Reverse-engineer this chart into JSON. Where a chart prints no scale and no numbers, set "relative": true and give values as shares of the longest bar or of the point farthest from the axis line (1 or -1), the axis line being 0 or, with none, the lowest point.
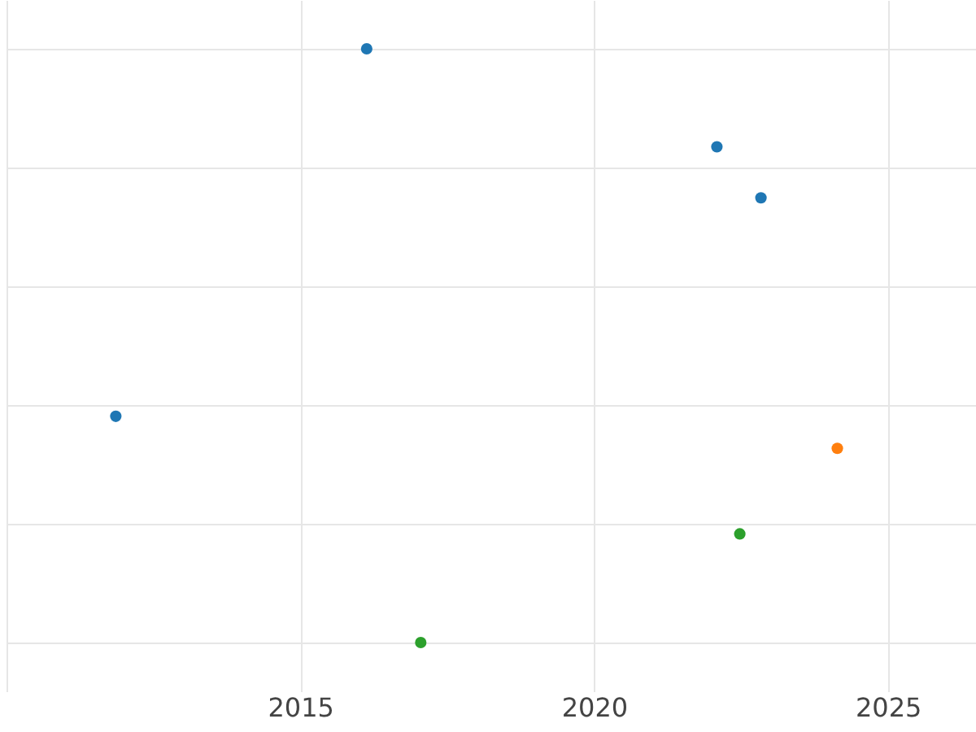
{
  "chart_data": {
    "type": "scatter",
    "relative": true,
    "grid": true,
    "marker": "circle",
    "xlim": [
      2010,
      2026.5
    ],
    "xticks": [
      {
        "value": 2010,
        "label": null
      },
      2015,
      2020,
      2025
    ],
    "series": [
      {
        "color": "#1f77b4",
        "x": [
          2016.13,
          2022.09,
          2022.84,
          2011.86
        ],
        "values": [
          1,
          0.835,
          0.749,
          0.381
        ]
      },
      {
        "color": "#ff7f0e",
        "x": [
          2024.14
        ],
        "values": [
          0.327
        ]
      },
      {
        "color": "#2ca02c",
        "x": [
          2022.48,
          2017.05
        ],
        "values": [
          0.183,
          0
        ]
      }
    ]
  }
}
